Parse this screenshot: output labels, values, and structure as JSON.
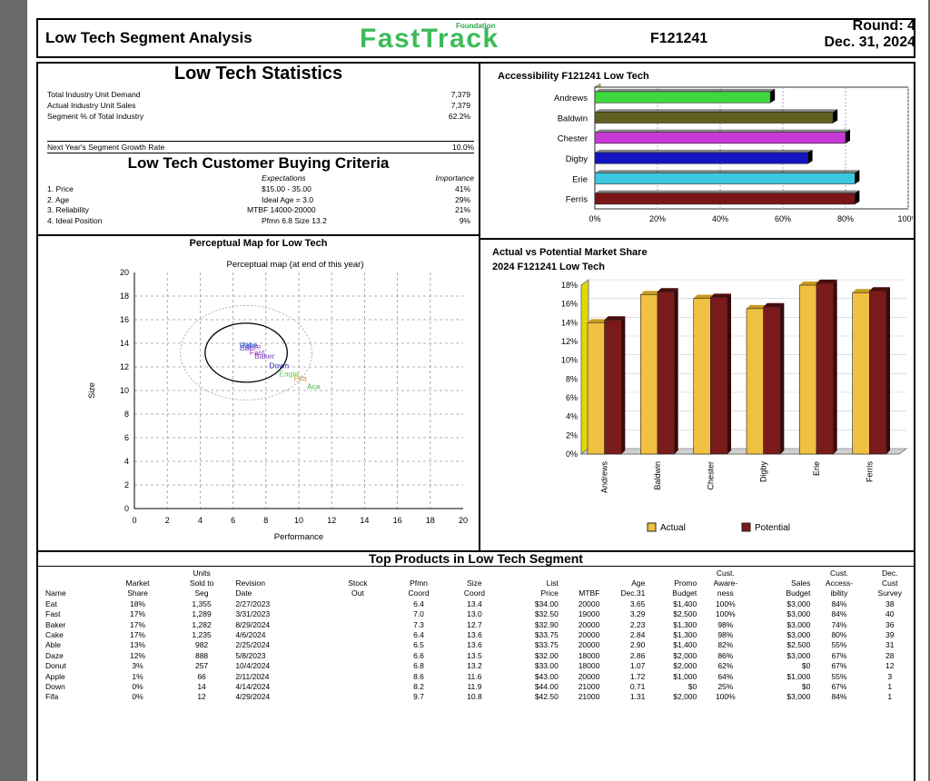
{
  "header": {
    "title": "Low Tech Segment Analysis",
    "logo_small": "Foundation",
    "logo_big": "FastTrack",
    "company_id": "F121241",
    "round": "Round: 4",
    "date": "Dec. 31, 2024"
  },
  "statistics": {
    "title": "Low Tech Statistics",
    "rows": [
      {
        "label": "Total Industry Unit Demand",
        "value": "7,379"
      },
      {
        "label": "Actual Industry Unit Sales",
        "value": "7,379"
      },
      {
        "label": "Segment % of Total Industry",
        "value": "62.2%"
      }
    ],
    "growth_label": "Next Year's Segment Growth Rate",
    "growth_value": "10.0%"
  },
  "criteria": {
    "title": "Low Tech Customer Buying Criteria",
    "col_expectations": "Expectations",
    "col_importance": "Importance",
    "rows": [
      {
        "label": "1. Price",
        "expectation": "$15.00 - 35.00",
        "importance": "41%"
      },
      {
        "label": "2. Age",
        "expectation": "Ideal Age = 3.0",
        "importance": "29%"
      },
      {
        "label": "3. Reliability",
        "expectation": "MTBF 14000-20000",
        "importance": "21%"
      },
      {
        "label": "4. Ideal Position",
        "expectation": "Pfmn 6.8 Size 13.2",
        "importance": "9%"
      }
    ]
  },
  "perceptual_map": {
    "title": "Perceptual Map for Low Tech",
    "subtitle": "Perceptual map (at end of this year)",
    "xlabel": "Performance",
    "ylabel": "Size",
    "x_ticks": [
      "0",
      "2",
      "4",
      "6",
      "8",
      "10",
      "12",
      "14",
      "16",
      "18",
      "20"
    ],
    "y_ticks": [
      "0",
      "2",
      "4",
      "6",
      "8",
      "10",
      "12",
      "14",
      "16",
      "18",
      "20"
    ],
    "products": [
      {
        "name": "Baker",
        "pfmn": 7.3,
        "size": 12.7,
        "color": "#7a3fbf"
      },
      {
        "name": "Cake",
        "pfmn": 6.4,
        "size": 13.6,
        "color": "#4040c0"
      },
      {
        "name": "Eat",
        "pfmn": 6.4,
        "size": 13.4,
        "color": "#4a4ad0"
      },
      {
        "name": "Fast",
        "pfmn": 7.0,
        "size": 13.0,
        "color": "#9c40c0"
      },
      {
        "name": "Daze",
        "pfmn": 6.6,
        "size": 13.5,
        "color": "#c040c0"
      },
      {
        "name": "Down",
        "pfmn": 8.2,
        "size": 11.9,
        "color": "#2a2ab0"
      },
      {
        "name": "Fifa",
        "pfmn": 9.7,
        "size": 10.8,
        "color": "#e09020"
      },
      {
        "name": "Able",
        "pfmn": 6.5,
        "size": 13.6,
        "color": "#40a0e0"
      },
      {
        "name": "Ace",
        "pfmn": 10.5,
        "size": 10.1,
        "color": "#40b040"
      },
      {
        "name": "Eagle",
        "pfmn": 8.8,
        "size": 11.2,
        "color": "#60d060"
      }
    ]
  },
  "accessibility_chart": {
    "title": "Accessibility F121241 Low Tech",
    "x_ticks": [
      "0%",
      "20%",
      "40%",
      "60%",
      "80%",
      "100%"
    ]
  },
  "market_share_chart": {
    "title_line1": "Actual vs Potential Market Share",
    "title_line2": "2024 F121241 Low Tech",
    "y_ticks": [
      "0%",
      "2%",
      "4%",
      "6%",
      "8%",
      "10%",
      "12%",
      "14%",
      "16%",
      "18%"
    ],
    "legend_actual": "Actual",
    "legend_potential": "Potential"
  },
  "chart_data": [
    {
      "type": "bar",
      "title": "Accessibility F121241 Low Tech",
      "orientation": "horizontal",
      "categories": [
        "Andrews",
        "Baldwin",
        "Chester",
        "Digby",
        "Erie",
        "Ferris"
      ],
      "values": [
        56,
        76,
        80,
        68,
        83,
        83
      ],
      "colors": [
        "#3ed83e",
        "#606020",
        "#c83ad8",
        "#1414c0",
        "#3cc8e0",
        "#7a1616"
      ],
      "xlim": [
        0,
        100
      ],
      "unit": "%"
    },
    {
      "type": "bar",
      "title": "Actual vs Potential Market Share 2024 F121241 Low Tech",
      "categories": [
        "Andrews",
        "Baldwin",
        "Chester",
        "Digby",
        "Erie",
        "Ferris"
      ],
      "series": [
        {
          "name": "Actual",
          "values": [
            14.0,
            17.0,
            16.6,
            15.5,
            18.0,
            17.2
          ],
          "color": "#f0c040"
        },
        {
          "name": "Potential",
          "values": [
            14.3,
            17.3,
            16.7,
            15.7,
            18.2,
            17.4
          ],
          "color": "#7a1a1a"
        }
      ],
      "ylim": [
        0,
        18
      ],
      "unit": "%"
    },
    {
      "type": "scatter",
      "title": "Perceptual map (at end of this year)",
      "xlabel": "Performance",
      "ylabel": "Size",
      "xlim": [
        0,
        20
      ],
      "ylim": [
        0,
        20
      ],
      "points": [
        {
          "name": "Baker",
          "x": 7.3,
          "y": 12.7
        },
        {
          "name": "Cake",
          "x": 6.4,
          "y": 13.6
        },
        {
          "name": "Eat",
          "x": 6.4,
          "y": 13.4
        },
        {
          "name": "Fast",
          "x": 7.0,
          "y": 13.0
        },
        {
          "name": "Daze",
          "x": 6.6,
          "y": 13.5
        },
        {
          "name": "Down",
          "x": 8.2,
          "y": 11.9
        },
        {
          "name": "Fifa",
          "x": 9.7,
          "y": 10.8
        },
        {
          "name": "Able",
          "x": 6.5,
          "y": 13.6
        },
        {
          "name": "Ace",
          "x": 10.5,
          "y": 10.1
        },
        {
          "name": "Eagle",
          "x": 8.8,
          "y": 11.2
        }
      ]
    }
  ],
  "top_products": {
    "title": "Top Products in Low Tech Segment",
    "head1": [
      "",
      "",
      "Units",
      "",
      "",
      "",
      "",
      "",
      "",
      "",
      "",
      "Cust.",
      "",
      "Cust.",
      "Dec."
    ],
    "head2": [
      "",
      "Market",
      "Sold to",
      "Revision",
      "Stock",
      "Pfmn",
      "Size",
      "List",
      "",
      "Age",
      "Promo",
      "Aware-",
      "Sales",
      "Access-",
      "Cust"
    ],
    "head3": [
      "Name",
      "Share",
      "Seg",
      "Date",
      "Out",
      "Coord",
      "Coord",
      "Price",
      "MTBF",
      "Dec.31",
      "Budget",
      "ness",
      "Budget",
      "ibility",
      "Survey"
    ],
    "rows": [
      [
        "Eat",
        "18%",
        "1,355",
        "2/27/2023",
        "",
        "6.4",
        "13.4",
        "$34.00",
        "20000",
        "3.65",
        "$1,400",
        "100%",
        "$3,000",
        "84%",
        "38"
      ],
      [
        "Fast",
        "17%",
        "1,289",
        "3/31/2023",
        "",
        "7.0",
        "13.0",
        "$32.50",
        "19000",
        "3.29",
        "$2,500",
        "100%",
        "$3,000",
        "84%",
        "40"
      ],
      [
        "Baker",
        "17%",
        "1,282",
        "8/29/2024",
        "",
        "7.3",
        "12.7",
        "$32.90",
        "20000",
        "2.23",
        "$1,300",
        "98%",
        "$3,000",
        "74%",
        "36"
      ],
      [
        "Cake",
        "17%",
        "1,235",
        "4/6/2024",
        "",
        "6.4",
        "13.6",
        "$33.75",
        "20000",
        "2.84",
        "$1,300",
        "98%",
        "$3,000",
        "80%",
        "39"
      ],
      [
        "Able",
        "13%",
        "982",
        "2/25/2024",
        "",
        "6.5",
        "13.6",
        "$33.75",
        "20000",
        "2.90",
        "$1,400",
        "82%",
        "$2,500",
        "55%",
        "31"
      ],
      [
        "Daze",
        "12%",
        "888",
        "5/8/2023",
        "",
        "6.6",
        "13.5",
        "$32.00",
        "18000",
        "2.86",
        "$2,000",
        "86%",
        "$3,000",
        "67%",
        "28"
      ],
      [
        "Donut",
        "3%",
        "257",
        "10/4/2024",
        "",
        "6.8",
        "13.2",
        "$33.00",
        "18000",
        "1.07",
        "$2,000",
        "62%",
        "$0",
        "67%",
        "12"
      ],
      [
        "Apple",
        "1%",
        "66",
        "2/11/2024",
        "",
        "8.6",
        "11.6",
        "$43.00",
        "20000",
        "1.72",
        "$1,000",
        "64%",
        "$1,000",
        "55%",
        "3"
      ],
      [
        "Down",
        "0%",
        "14",
        "4/14/2024",
        "",
        "8.2",
        "11.9",
        "$44.00",
        "21000",
        "0.71",
        "$0",
        "25%",
        "$0",
        "67%",
        "1"
      ],
      [
        "Fifa",
        "0%",
        "12",
        "4/29/2024",
        "",
        "9.7",
        "10.8",
        "$42.50",
        "21000",
        "1.31",
        "$2,000",
        "100%",
        "$3,000",
        "84%",
        "1"
      ]
    ]
  }
}
